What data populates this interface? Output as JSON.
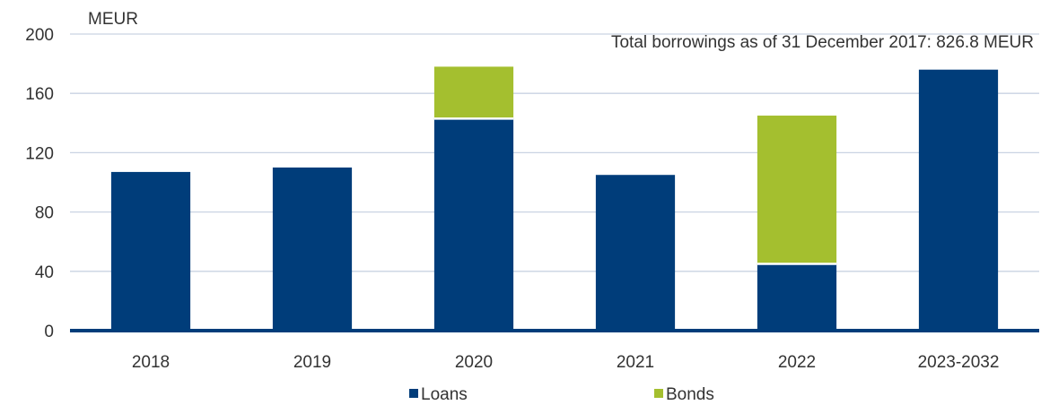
{
  "chart_data": {
    "type": "bar",
    "stacked": true,
    "unit_label": "MEUR",
    "annotation": "Total borrowings as of 31 December 2017: 826.8 MEUR",
    "categories": [
      "2018",
      "2019",
      "2020",
      "2021",
      "2022",
      "2023-2032"
    ],
    "series": [
      {
        "name": "Loans",
        "color": "#003d7a",
        "values": [
          107,
          110,
          143,
          105,
          45,
          176
        ]
      },
      {
        "name": "Bonds",
        "color": "#a4bf2f",
        "values": [
          0,
          0,
          35,
          0,
          100,
          0
        ]
      }
    ],
    "ylim": [
      0,
      200
    ],
    "yticks": [
      0,
      40,
      80,
      120,
      160,
      200
    ],
    "grid": true,
    "legend": "bottom"
  }
}
